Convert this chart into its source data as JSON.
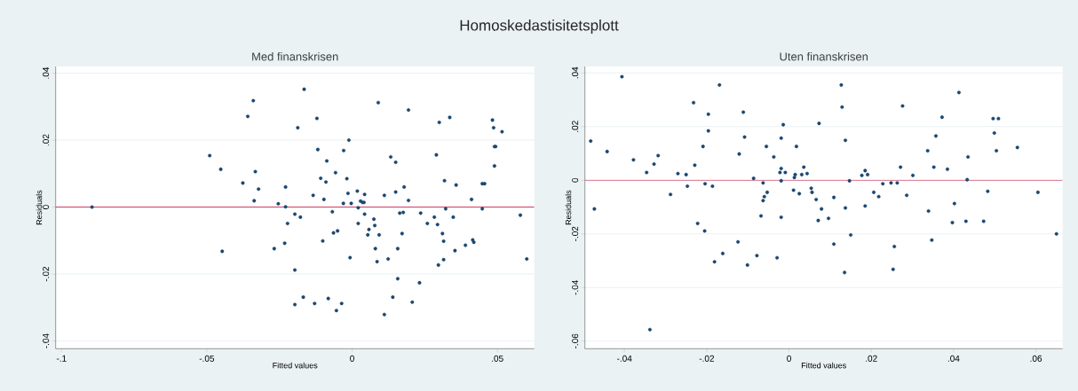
{
  "chart_data": [
    {
      "type": "scatter",
      "title": "Homoskedastisitetsplott",
      "subtitle": "Med finanskrisen",
      "xlabel": "Fitted values",
      "ylabel": "Residuals",
      "grid": "y",
      "marker": "circle",
      "xlim": [
        -0.102,
        0.0627
      ],
      "ylim": [
        -0.0423,
        0.042
      ],
      "xticks": [
        {
          "value": -0.1,
          "label": "-.1"
        },
        {
          "value": -0.05,
          "label": "-.05"
        },
        {
          "value": 0,
          "label": "0"
        },
        {
          "value": 0.05,
          "label": ".05"
        }
      ],
      "yticks": [
        {
          "value": -0.04,
          "label": "-.04"
        },
        {
          "value": -0.02,
          "label": "-.02"
        },
        {
          "value": 0,
          "label": "0"
        },
        {
          "value": 0.02,
          "label": ".02"
        },
        {
          "value": 0.04,
          "label": ".04"
        }
      ],
      "ref_lines": [
        {
          "axis": "y",
          "value": 0,
          "color": "#c8204a"
        }
      ],
      "series": [
        {
          "color": "#1a476f",
          "x": [
            -0.0895,
            -0.049,
            -0.0452,
            -0.0447,
            -0.0376,
            -0.0359,
            -0.034,
            -0.0333,
            -0.0337,
            -0.0322,
            -0.0268,
            -0.0254,
            -0.0232,
            -0.0229,
            -0.0229,
            -0.0222,
            -0.0197,
            -0.0197,
            -0.0197,
            -0.0187,
            -0.0178,
            -0.0168,
            -0.0165,
            -0.0134,
            -0.0129,
            -0.0121,
            -0.0118,
            -0.0108,
            -0.0101,
            -0.0097,
            -0.009,
            -0.0087,
            -0.0082,
            -0.0068,
            -0.0064,
            -0.0057,
            -0.0054,
            -0.005,
            -0.0036,
            -0.003,
            -0.0029,
            -0.0018,
            -0.0014,
            -0.0011,
            -0.0007,
            -0.0003,
            0.0018,
            0.0021,
            0.0021,
            0.0029,
            0.0036,
            0.0041,
            0.0043,
            0.0043,
            0.0054,
            0.0058,
            0.0075,
            0.0078,
            0.008,
            0.0086,
            0.009,
            0.0093,
            0.0111,
            0.0111,
            0.0124,
            0.0133,
            0.014,
            0.015,
            0.015,
            0.0157,
            0.0157,
            0.0164,
            0.0172,
            0.0176,
            0.0179,
            0.0194,
            0.0194,
            0.0207,
            0.0232,
            0.0236,
            0.0259,
            0.0283,
            0.029,
            0.0294,
            0.0297,
            0.03,
            0.0311,
            0.0315,
            0.0315,
            0.0318,
            0.0322,
            0.0336,
            0.0348,
            0.0354,
            0.0358,
            0.039,
            0.0411,
            0.0415,
            0.0419,
            0.0448,
            0.0456,
            0.0448,
            0.0483,
            0.0487,
            0.049,
            0.0494,
            0.049,
            0.0516,
            0.0579,
            0.0601
          ],
          "values": [
            0.0,
            0.0154,
            0.0113,
            -0.0132,
            0.0072,
            0.0271,
            0.0318,
            0.0106,
            0.0019,
            0.0054,
            -0.0124,
            0.001,
            -0.0108,
            0.006,
            0.0001,
            -0.0049,
            -0.0021,
            -0.0188,
            -0.0291,
            0.0237,
            -0.003,
            -0.0269,
            0.0352,
            0.0035,
            -0.0288,
            0.0265,
            0.0172,
            0.0086,
            -0.0101,
            0.0023,
            0.0075,
            0.0138,
            -0.0273,
            -0.0014,
            -0.0077,
            0.0103,
            -0.0309,
            -0.0071,
            -0.0288,
            0.0011,
            0.0169,
            0.0085,
            0.0041,
            0.02,
            -0.0151,
            0.0011,
            0.0048,
            -0.0002,
            -0.0049,
            0.0018,
            0.0014,
            0.0014,
            0.0038,
            -0.0021,
            -0.0083,
            -0.0067,
            -0.0036,
            -0.0055,
            -0.0124,
            -0.0163,
            0.0312,
            -0.0083,
            0.0035,
            -0.0321,
            -0.0155,
            0.015,
            -0.0269,
            0.0134,
            0.0045,
            -0.0124,
            -0.0214,
            -0.0018,
            -0.0079,
            -0.0016,
            0.006,
            0.029,
            0.002,
            -0.0284,
            -0.0226,
            -0.0018,
            -0.0049,
            -0.003,
            0.0156,
            -0.0052,
            -0.0173,
            0.0253,
            -0.0079,
            -0.0102,
            -0.0157,
            0.0079,
            -0.0005,
            0.0268,
            -0.003,
            -0.013,
            0.0066,
            -0.0114,
            0.0023,
            -0.0098,
            -0.0105,
            0.007,
            0.007,
            -0.0005,
            0.026,
            0.0237,
            0.0181,
            0.0181,
            0.0123,
            0.0225,
            -0.0024,
            -0.0155
          ]
        }
      ]
    },
    {
      "type": "scatter",
      "subtitle": "Uten finanskrisen",
      "xlabel": "Fitted values",
      "ylabel": "Residuals",
      "grid": "y",
      "marker": "circle",
      "xlim": [
        -0.0496,
        0.0665
      ],
      "ylim": [
        -0.0628,
        0.0424
      ],
      "xticks": [
        {
          "value": -0.04,
          "label": "-.04"
        },
        {
          "value": -0.02,
          "label": "-.02"
        },
        {
          "value": 0,
          "label": "0"
        },
        {
          "value": 0.02,
          "label": ".02"
        },
        {
          "value": 0.04,
          "label": ".04"
        },
        {
          "value": 0.06,
          "label": ".06"
        }
      ],
      "yticks": [
        {
          "value": -0.06,
          "label": "-.06"
        },
        {
          "value": -0.04,
          "label": "-.04"
        },
        {
          "value": -0.02,
          "label": "-.02"
        },
        {
          "value": 0,
          "label": "0"
        },
        {
          "value": 0.02,
          "label": ".02"
        },
        {
          "value": 0.04,
          "label": ".04"
        }
      ],
      "ref_lines": [
        {
          "axis": "y",
          "value": 0,
          "color": "#c8204a"
        }
      ],
      "series": [
        {
          "color": "#1a476f",
          "x": [
            -0.0482,
            -0.0473,
            -0.0442,
            -0.0406,
            -0.0378,
            -0.0346,
            -0.0338,
            -0.0328,
            -0.0318,
            -0.0288,
            -0.027,
            -0.025,
            -0.0247,
            -0.0232,
            -0.0229,
            -0.0222,
            -0.0209,
            -0.0205,
            -0.0204,
            -0.0196,
            -0.0196,
            -0.0186,
            -0.0181,
            -0.0169,
            -0.0161,
            -0.0124,
            -0.0121,
            -0.0111,
            -0.0108,
            -0.0101,
            -0.0086,
            -0.0078,
            -0.0068,
            -0.0063,
            -0.0063,
            -0.006,
            -0.0055,
            -0.0053,
            -0.0037,
            -0.0029,
            -0.0022,
            -0.0019,
            -0.0019,
            -0.0019,
            -0.0019,
            -0.0014,
            -0.0009,
            0.0011,
            0.0013,
            0.0015,
            0.0018,
            0.0025,
            0.0031,
            0.0036,
            0.0044,
            0.0054,
            0.0056,
            0.0066,
            0.0071,
            0.0073,
            0.0079,
            0.0096,
            0.0109,
            0.0109,
            0.0127,
            0.0129,
            0.0135,
            0.0137,
            0.0137,
            0.0147,
            0.015,
            0.0177,
            0.0185,
            0.0185,
            0.0191,
            0.0206,
            0.0218,
            0.0228,
            0.0248,
            0.0253,
            0.0256,
            0.0263,
            0.0271,
            0.0276,
            0.0286,
            0.0301,
            0.0337,
            0.0339,
            0.0347,
            0.0352,
            0.0357,
            0.0372,
            0.0385,
            0.0397,
            0.0402,
            0.0413,
            0.043,
            0.0433,
            0.0435,
            0.0473,
            0.0483,
            0.0496,
            0.0499,
            0.0504,
            0.0509,
            0.0555,
            0.0605,
            0.065
          ],
          "values": [
            0.0146,
            -0.0107,
            0.0107,
            0.0386,
            0.0076,
            0.0029,
            -0.0557,
            0.006,
            0.0092,
            -0.0053,
            0.0025,
            0.0021,
            -0.0022,
            0.0289,
            0.0056,
            -0.0161,
            0.0126,
            -0.0189,
            -0.0013,
            0.0246,
            0.0184,
            -0.0022,
            -0.0304,
            0.0355,
            -0.0273,
            -0.023,
            0.0098,
            0.0254,
            0.0161,
            -0.0316,
            0.0007,
            -0.0281,
            -0.0133,
            -0.001,
            -0.0076,
            -0.0061,
            0.0126,
            -0.0045,
            0.0087,
            -0.0289,
            0.0029,
            0.0044,
            0.0157,
            -0.0002,
            -0.0138,
            0.0207,
            0.0029,
            -0.0037,
            0.001,
            0.0021,
            0.0126,
            -0.005,
            0.0021,
            0.0049,
            0.0025,
            -0.003,
            -0.0045,
            -0.0072,
            -0.015,
            0.0212,
            -0.0107,
            -0.0142,
            -0.0064,
            -0.0238,
            0.0355,
            0.0273,
            -0.0344,
            0.0149,
            -0.0103,
            -0.0002,
            -0.0204,
            0.0018,
            0.0036,
            -0.0096,
            0.0021,
            -0.0045,
            -0.0061,
            -0.0013,
            -0.001,
            -0.0332,
            -0.0247,
            -0.001,
            0.0049,
            0.0277,
            -0.0056,
            0.0018,
            0.011,
            -0.0115,
            -0.0223,
            0.0049,
            0.0165,
            0.0235,
            0.0041,
            -0.0158,
            -0.0087,
            0.0327,
            -0.0153,
            0.0002,
            0.0087,
            -0.0153,
            -0.0041,
            0.023,
            0.0176,
            0.011,
            0.023,
            0.0122,
            -0.0045,
            -0.02
          ]
        }
      ]
    }
  ]
}
